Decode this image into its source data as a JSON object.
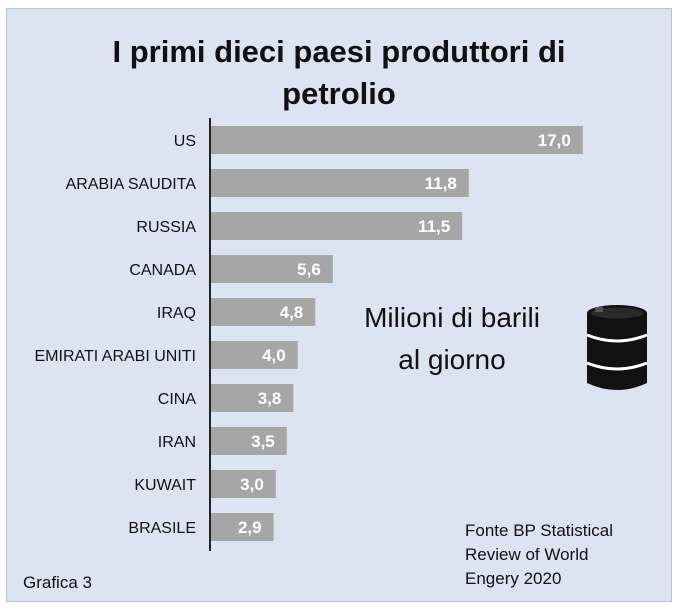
{
  "chart_data": {
    "type": "bar",
    "orientation": "horizontal",
    "title_lines": [
      "I primi dieci paesi produttori di",
      "petrolio"
    ],
    "categories": [
      "US",
      "ARABIA SAUDITA",
      "RUSSIA",
      "CANADA",
      "IRAQ",
      "EMIRATI ARABI UNITI",
      "CINA",
      "IRAN",
      "KUWAIT",
      "BRASILE"
    ],
    "values": [
      17.0,
      11.8,
      11.5,
      5.6,
      4.8,
      4.0,
      3.8,
      3.5,
      3.0,
      2.9
    ],
    "value_labels": [
      "17,0",
      "11,8",
      "11,5",
      "5,6",
      "4,8",
      "4,0",
      "3,8",
      "3,5",
      "3,0",
      "2,9"
    ],
    "xlim": [
      0,
      17.6
    ],
    "grid": false,
    "legend": "none",
    "bar_color": "#a6a6a6",
    "background_color": "#dce3f1"
  },
  "annotation_lines": [
    "Milioni di barili",
    "al giorno"
  ],
  "source_lines": [
    "Fonte BP Statistical",
    "Review of World",
    "Engery 2020"
  ],
  "figure_label": "Grafica 3",
  "barrel_icon": "oil-barrel-icon"
}
